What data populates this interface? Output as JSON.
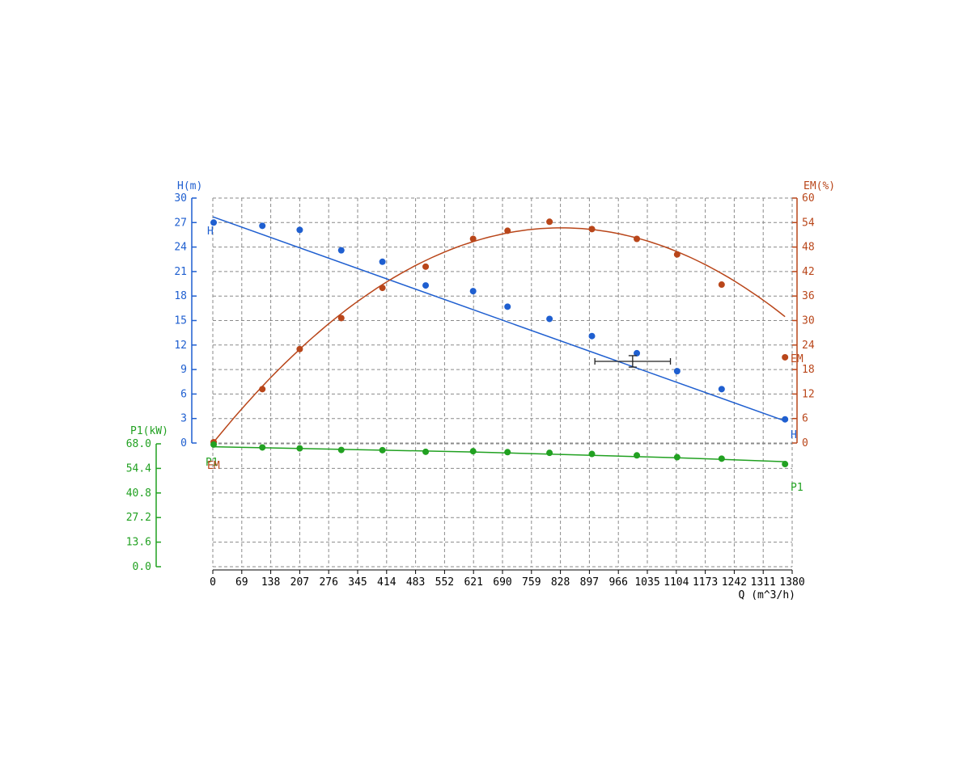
{
  "colors": {
    "h": "#1f5fd0",
    "em": "#b9461a",
    "p1": "#21a121",
    "axis": "#000000",
    "grid": "#8a8a8a"
  },
  "chart_data": {
    "type": "line",
    "xlabel": "Q (m^3/h)",
    "x_ticks": [
      "0",
      "69",
      "138",
      "207",
      "276",
      "345",
      "414",
      "483",
      "552",
      "621",
      "690",
      "759",
      "828",
      "897",
      "966",
      "1035",
      "1104",
      "1173",
      "1242",
      "1311",
      "1380"
    ],
    "xlim": [
      0,
      1380
    ],
    "axes": {
      "h": {
        "label": "H(m)",
        "ticks": [
          "0",
          "3",
          "6",
          "9",
          "12",
          "15",
          "18",
          "21",
          "24",
          "27",
          "30"
        ],
        "ylim": [
          0,
          30
        ]
      },
      "em": {
        "label": "EM(%)",
        "ticks": [
          "0",
          "6",
          "12",
          "18",
          "24",
          "30",
          "36",
          "42",
          "48",
          "54",
          "60"
        ],
        "ylim": [
          0,
          60
        ]
      },
      "p1": {
        "label": "P1(kW)",
        "ticks": [
          "0.0",
          "13.6",
          "27.2",
          "40.8",
          "54.4",
          "68.0"
        ],
        "ylim": [
          0,
          68
        ]
      }
    },
    "series": [
      {
        "name": "H",
        "axis": "h",
        "points": [
          [
            2,
            27.0
          ],
          [
            118,
            26.6
          ],
          [
            207,
            26.1
          ],
          [
            306,
            23.6
          ],
          [
            404,
            22.2
          ],
          [
            507,
            19.3
          ],
          [
            620,
            18.6
          ],
          [
            702,
            16.7
          ],
          [
            802,
            15.2
          ],
          [
            903,
            13.1
          ],
          [
            1010,
            11.0
          ],
          [
            1106,
            8.8
          ],
          [
            1212,
            6.6
          ],
          [
            1363,
            2.9
          ]
        ],
        "fit": [
          [
            0,
            27.7
          ],
          [
            1363,
            2.7
          ]
        ]
      },
      {
        "name": "EM",
        "axis": "em",
        "points": [
          [
            2,
            0.2
          ],
          [
            118,
            13.2
          ],
          [
            207,
            23.0
          ],
          [
            306,
            30.6
          ],
          [
            404,
            38.0
          ],
          [
            507,
            43.2
          ],
          [
            620,
            50.0
          ],
          [
            702,
            52.0
          ],
          [
            802,
            54.2
          ],
          [
            903,
            52.4
          ],
          [
            1010,
            50.0
          ],
          [
            1106,
            46.2
          ],
          [
            1212,
            38.8
          ],
          [
            1363,
            21.0
          ]
        ],
        "fit_peak": {
          "x": 830,
          "y": 52.7
        },
        "fit_range": [
          0,
          1363
        ]
      },
      {
        "name": "P1",
        "axis": "p1",
        "points": [
          [
            2,
            67.6
          ],
          [
            118,
            66.0
          ],
          [
            207,
            65.5
          ],
          [
            306,
            64.6
          ],
          [
            404,
            64.5
          ],
          [
            507,
            63.6
          ],
          [
            620,
            63.9
          ],
          [
            702,
            63.4
          ],
          [
            802,
            63.0
          ],
          [
            903,
            62.4
          ],
          [
            1010,
            61.6
          ],
          [
            1106,
            60.6
          ],
          [
            1212,
            59.8
          ],
          [
            1363,
            56.8
          ]
        ],
        "fit": [
          [
            0,
            66.4
          ],
          [
            620,
            63.5
          ],
          [
            1106,
            60.3
          ],
          [
            1363,
            58.1
          ]
        ]
      }
    ],
    "duty_point": {
      "q": 1000,
      "h": 10,
      "q_range": [
        910,
        1090
      ],
      "h_range": [
        9.3,
        10.7
      ]
    },
    "curve_end_labels": [
      {
        "text": "H",
        "series": "H"
      },
      {
        "text": "EM",
        "series": "EM"
      },
      {
        "text": "P1",
        "series": "P1"
      }
    ],
    "curve_start_labels": [
      {
        "text": "H",
        "series": "H"
      },
      {
        "text": "P1",
        "series": "P1"
      },
      {
        "text": "EM",
        "series": "EM"
      }
    ]
  }
}
